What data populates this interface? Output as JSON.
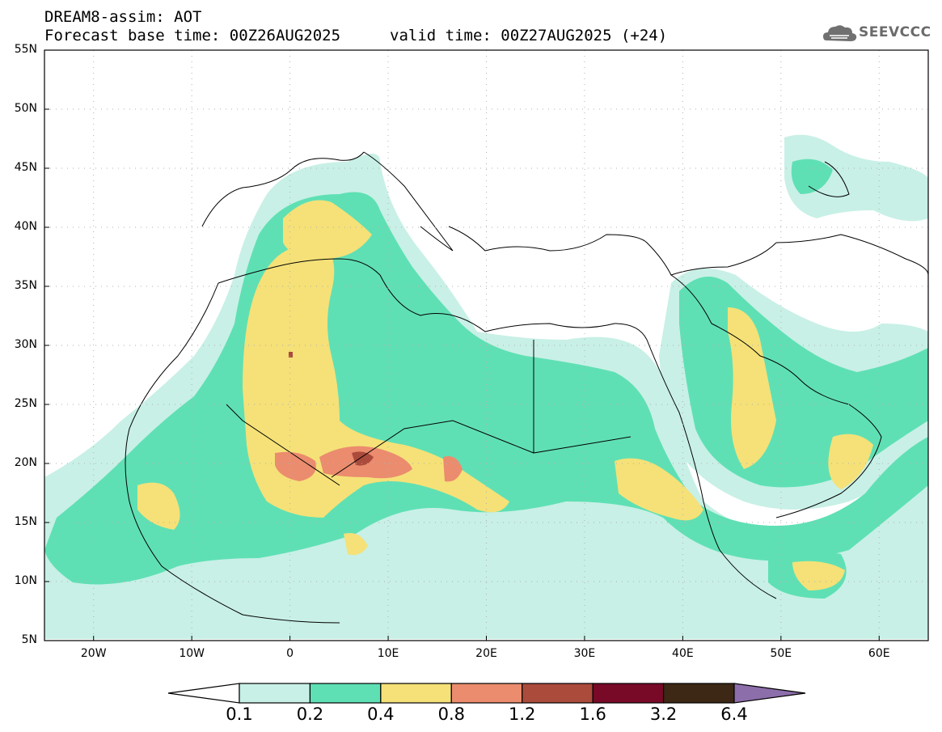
{
  "header": {
    "line1": "DREAM8-assim: AOT",
    "line2": "Forecast base time: 00Z26AUG2025",
    "valid": "valid time: 00Z27AUG2025 (+24)"
  },
  "logo": {
    "text": "SEEVCCC",
    "icon": "cloud-logo-icon"
  },
  "map": {
    "variable": "AOT",
    "lat_range": [
      5,
      55
    ],
    "lon_range": [
      -25,
      65
    ],
    "lat_labels": [
      "55N",
      "50N",
      "45N",
      "40N",
      "35N",
      "30N",
      "25N",
      "20N",
      "15N",
      "10N",
      "5N"
    ],
    "lon_labels": [
      "20W",
      "10W",
      "0",
      "10E",
      "20E",
      "30E",
      "40E",
      "50E",
      "60E"
    ],
    "grid": "dotted"
  },
  "colorbar": {
    "labels": [
      "0.1",
      "0.2",
      "0.4",
      "0.8",
      "1.2",
      "1.6",
      "3.2",
      "6.4"
    ],
    "colors": [
      "#c8f0e6",
      "#5fe0b4",
      "#f5e178",
      "#eb8c6e",
      "#aa4b3c",
      "#780a28",
      "#3c2814",
      "#8c6eaa"
    ]
  }
}
